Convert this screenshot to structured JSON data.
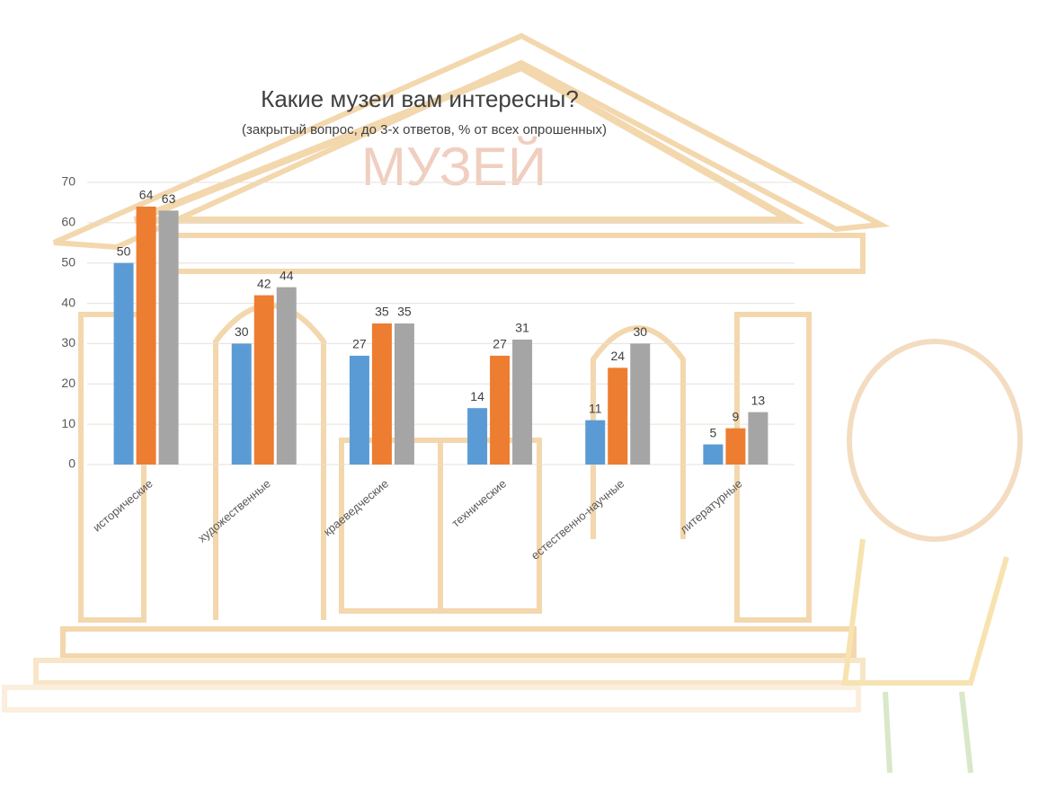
{
  "chart_data": {
    "type": "bar",
    "title": "Какие музеи вам интересны?",
    "subtitle": "(закрытый вопрос, до 3-х ответов, % от всех опрошенных)",
    "watermark": "МУЗЕЙ",
    "categories": [
      "исторические",
      "художественные",
      "краеведческие",
      "технические",
      "естественно-научные",
      "литературные"
    ],
    "series": [
      {
        "color": "#5b9bd5",
        "values": [
          50,
          30,
          27,
          14,
          11,
          5
        ]
      },
      {
        "color": "#ed7d31",
        "values": [
          64,
          42,
          35,
          27,
          24,
          9
        ]
      },
      {
        "color": "#a5a5a5",
        "values": [
          63,
          44,
          35,
          31,
          30,
          13
        ]
      }
    ],
    "ylim": [
      0,
      70
    ],
    "yticks": [
      0,
      10,
      20,
      30,
      40,
      50,
      60,
      70
    ],
    "grid": true
  }
}
